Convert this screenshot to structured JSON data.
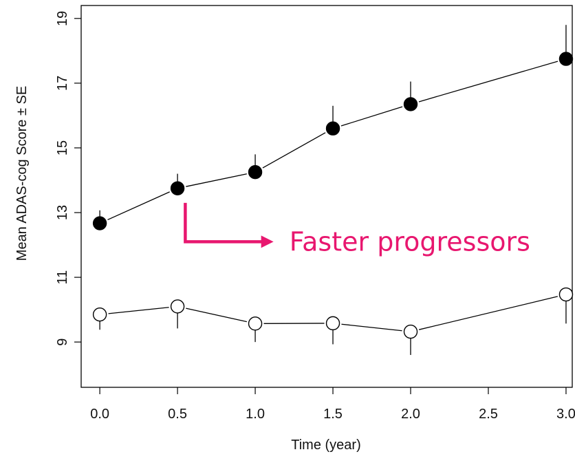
{
  "chart_data": {
    "type": "line",
    "xlabel": "Time (year)",
    "ylabel": "Mean ADAS-cog Score ± SE",
    "x_ticks": [
      0.0,
      0.5,
      1.0,
      1.5,
      2.0,
      2.5,
      3.0
    ],
    "x_tick_labels": [
      "0.0",
      "0.5",
      "1.0",
      "1.5",
      "2.0",
      "2.5",
      "3.0"
    ],
    "y_ticks": [
      9,
      11,
      13,
      15,
      17,
      19
    ],
    "y_tick_labels": [
      "9",
      "11",
      "13",
      "15",
      "17",
      "19"
    ],
    "xlim": [
      -0.12,
      3.04
    ],
    "ylim": [
      7.6,
      19.4
    ],
    "grid": false,
    "series": [
      {
        "marker": "filled-circle",
        "error_direction": "up",
        "x": [
          0.0,
          0.5,
          1.0,
          1.5,
          2.0,
          3.0
        ],
        "y": [
          12.67,
          13.75,
          14.25,
          15.6,
          16.35,
          17.75
        ],
        "se": [
          0.4,
          0.45,
          0.55,
          0.7,
          0.7,
          1.05
        ]
      },
      {
        "marker": "open-circle",
        "error_direction": "down",
        "x": [
          0.0,
          0.5,
          1.0,
          1.5,
          2.0,
          3.0
        ],
        "y": [
          9.85,
          10.1,
          9.57,
          9.58,
          9.32,
          10.47
        ],
        "se": [
          0.47,
          0.68,
          0.57,
          0.65,
          0.72,
          0.9
        ]
      }
    ],
    "annotation": {
      "text": "Faster progressors",
      "color": "#E8176F",
      "arrow_from": {
        "x": 0.55,
        "y": 13.3
      },
      "arrow_corner": {
        "x": 0.55,
        "y": 12.1
      },
      "arrow_to": {
        "x": 1.1,
        "y": 12.1
      },
      "text_anchor": {
        "x": 1.22,
        "y": 12.1
      }
    }
  }
}
